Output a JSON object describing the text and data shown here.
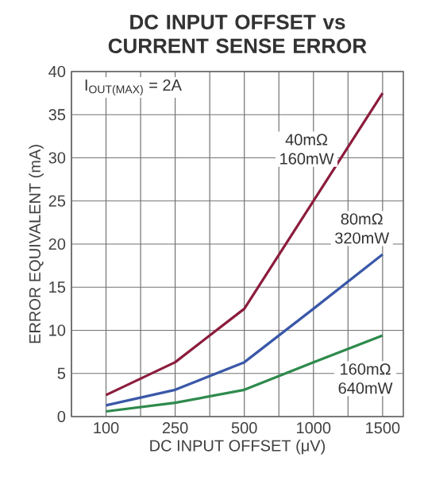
{
  "chart_data": {
    "type": "line",
    "title": "DC INPUT OFFSET vs CURRENT SENSE ERROR",
    "xlabel": "DC INPUT OFFSET (μV)",
    "ylabel": "ERROR EQUIVALENT (mA)",
    "annotations": [
      "I$_{OUT(MAX)}$ = 2A"
    ],
    "categories": [
      "100",
      "250",
      "500",
      "1000",
      "1500"
    ],
    "series": [
      {
        "name": "40mΩ 160mW",
        "color": "#8c1c3c",
        "values": [
          2.5,
          6.3,
          12.5,
          25,
          37.5
        ]
      },
      {
        "name": "80mΩ 320mW",
        "color": "#3a58a8",
        "values": [
          1.3,
          3.1,
          6.3,
          12.5,
          18.8
        ]
      },
      {
        "name": "160mΩ 640mW",
        "color": "#2e8a4c",
        "values": [
          0.6,
          1.6,
          3.1,
          6.3,
          9.4
        ]
      }
    ],
    "ylim": [
      0,
      40
    ],
    "yticks": [
      0,
      5,
      10,
      15,
      20,
      25,
      30,
      35,
      40
    ],
    "grid": true,
    "marker": "none",
    "line_style": "solid"
  }
}
